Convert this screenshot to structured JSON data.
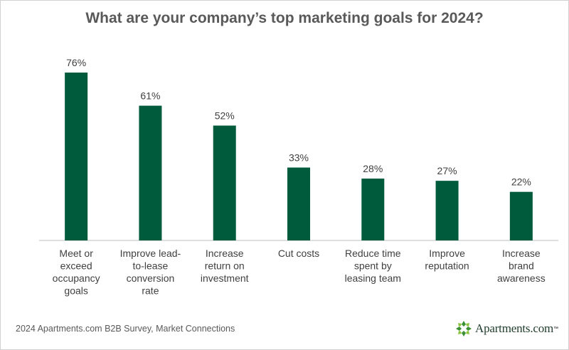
{
  "title": "What are your company’s top marketing goals for 2024?",
  "source": "2024 Apartments.com B2B Survey, Market Connections",
  "logo": {
    "text": "Apartments.com",
    "icon": "apartments-logo-icon",
    "color": "#2f7a2f"
  },
  "colors": {
    "bar": "#005a3c",
    "axis": "#bfbfbf",
    "label": "#404040"
  },
  "chart_data": {
    "type": "bar",
    "title": "What are your company’s top marketing goals for 2024?",
    "categories": [
      [
        "Meet or",
        "exceed",
        "occupancy",
        "goals"
      ],
      [
        "Improve lead-",
        "to-lease",
        "conversion",
        "rate"
      ],
      [
        "Increase",
        "return on",
        "investment"
      ],
      [
        "Cut costs"
      ],
      [
        "Reduce time",
        "spent by",
        "leasing team"
      ],
      [
        "Improve",
        "reputation"
      ],
      [
        "Increase",
        "brand",
        "awareness"
      ]
    ],
    "values": [
      76,
      61,
      52,
      33,
      28,
      27,
      22
    ],
    "value_labels": [
      "76%",
      "61%",
      "52%",
      "33%",
      "28%",
      "27%",
      "22%"
    ],
    "unit": "%",
    "ylim": [
      0,
      100
    ],
    "grid": false,
    "legend": "none"
  }
}
